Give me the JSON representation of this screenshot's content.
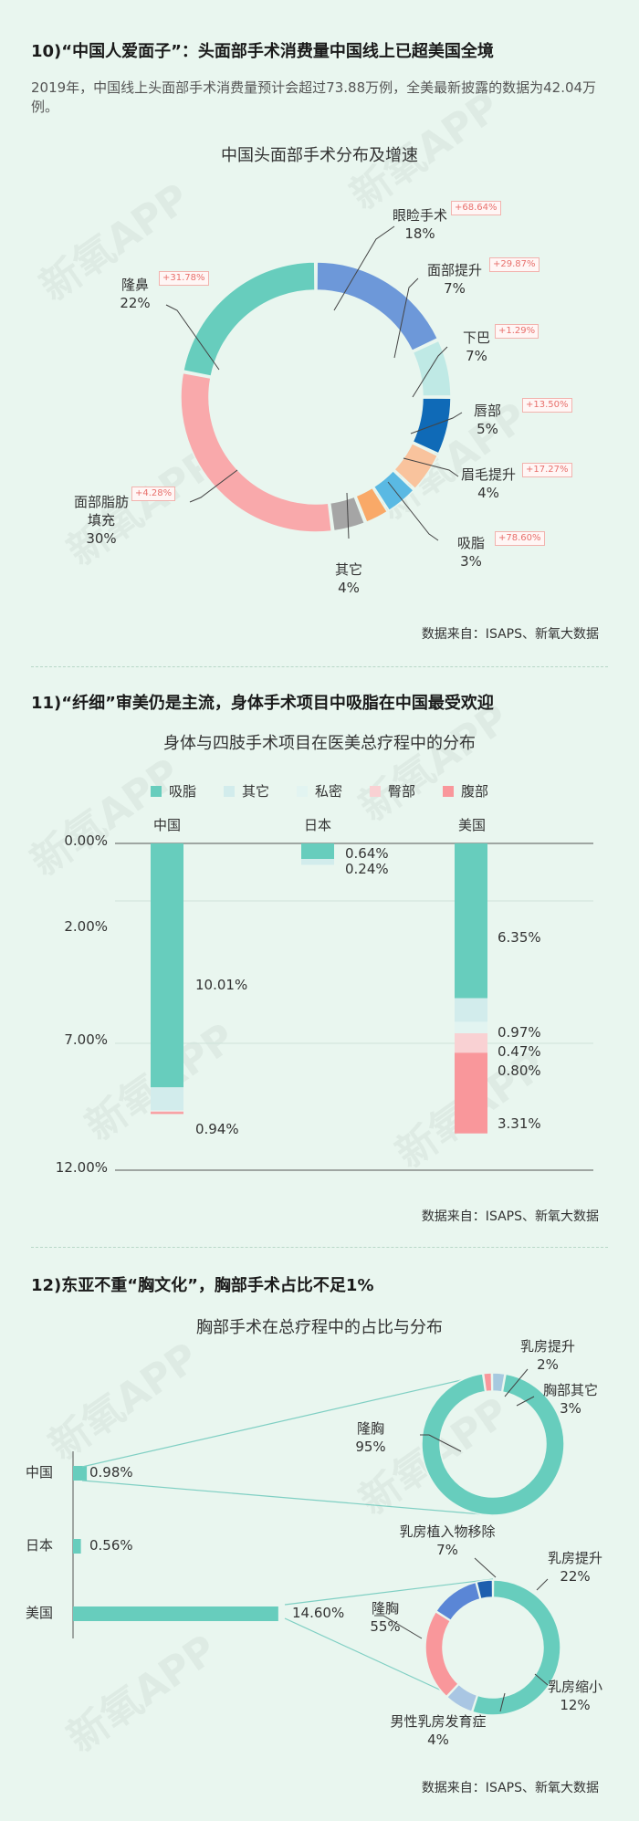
{
  "colors": {
    "teal": "#67cdbd",
    "lightteal": "#d2ecec",
    "palemint": "#e2f4f1",
    "pink": "#f9d1d3",
    "salmon": "#f9979b",
    "blue": "#6d98d9",
    "lightcyan": "#bfe9e5",
    "navy": "#0f6ab7",
    "peach": "#f9c39d",
    "sky": "#5ab9e3",
    "orange": "#f9a968",
    "gray": "#a5a5a5",
    "growth": "#e8706c"
  },
  "watermark": "新氧APP",
  "section10": {
    "heading": "10)“中国人爱面子”：头面部手术消费量中国线上已超美国全境",
    "intro": "2019年，中国线上头面部手术消费量预计会超过73.88万例，全美最新披露的数据为42.04万例。",
    "chart_title": "中国头面部手术分布及增速",
    "source": "数据来自：ISAPS、新氧大数据"
  },
  "section11": {
    "heading": "11)“纤细”审美仍是主流，身体手术项目中吸脂在中国最受欢迎",
    "chart_title": "身体与四肢手术项目在医美总疗程中的分布",
    "source": "数据来自：ISAPS、新氧大数据"
  },
  "section12": {
    "heading": "12)东亚不重“胸文化”，胸部手术占比不足1%",
    "chart_title": "胸部手术在总疗程中的占比与分布",
    "source": "数据来自：ISAPS、新氧大数据"
  },
  "chart_data": [
    {
      "type": "pie",
      "title": "中国头面部手术分布及增速",
      "slices": [
        {
          "label": "眼睑手术",
          "value": 18,
          "value_label": "18%",
          "growth": "+68.64%",
          "color": "#6d98d9"
        },
        {
          "label": "面部提升",
          "value": 7,
          "value_label": "7%",
          "growth": "+29.87%",
          "color": "#bfe9e5"
        },
        {
          "label": "下巴",
          "value": 7,
          "value_label": "7%",
          "growth": "+1.29%",
          "color": "#0f6ab7"
        },
        {
          "label": "唇部",
          "value": 5,
          "value_label": "5%",
          "growth": "+13.50%",
          "color": "#f9c39d"
        },
        {
          "label": "眉毛提升",
          "value": 4,
          "value_label": "4%",
          "growth": "+17.27%",
          "color": "#5ab9e3"
        },
        {
          "label": "吸脂",
          "value": 3,
          "value_label": "3%",
          "growth": "+78.60%",
          "color": "#f9a968"
        },
        {
          "label": "其它",
          "value": 4,
          "value_label": "4%",
          "growth": "",
          "color": "#a5a5a5"
        },
        {
          "label": "面部脂肪填充",
          "value": 30,
          "value_label": "30%",
          "growth": "+4.28%",
          "color": "#f9a9ab"
        },
        {
          "label": "隆鼻",
          "value": 22,
          "value_label": "22%",
          "growth": "+31.78%",
          "color": "#67cdbd"
        }
      ]
    },
    {
      "type": "bar",
      "stacked": true,
      "title": "身体与四肢手术项目在医美总疗程中的分布",
      "categories": [
        "中国",
        "日本",
        "美国"
      ],
      "legend": [
        "吸脂",
        "其它",
        "私密",
        "臀部",
        "腹部"
      ],
      "legend_placement": "top",
      "y_ticks": [
        "0.00%",
        "2.00%",
        "7.00%",
        "12.00%"
      ],
      "ylim": [
        0,
        12
      ],
      "series": [
        {
          "name": "吸脂",
          "values": [
            10.01,
            0.64,
            6.35
          ],
          "labels": [
            "10.01%",
            "0.64%",
            "6.35%"
          ],
          "color": "#67cdbd"
        },
        {
          "name": "其它",
          "values": [
            0.94,
            0.24,
            0.97
          ],
          "labels": [
            "0.94%",
            "0.24%",
            "0.97%"
          ],
          "color": "#d2ecec"
        },
        {
          "name": "私密",
          "values": [
            0.04,
            0,
            0.47
          ],
          "labels": [
            "",
            "",
            "0.47%"
          ],
          "color": "#e2f4f1"
        },
        {
          "name": "臀部",
          "values": [
            0.03,
            0,
            0.8
          ],
          "labels": [
            "",
            "",
            "0.80%"
          ],
          "color": "#f9d1d3"
        },
        {
          "name": "腹部",
          "values": [
            0.08,
            0,
            3.31
          ],
          "labels": [
            "",
            "",
            "3.31%"
          ],
          "color": "#f9979b"
        }
      ]
    },
    {
      "type": "bar",
      "orientation": "horizontal",
      "title": "胸部手术在总疗程中的占比与分布",
      "categories": [
        "中国",
        "日本",
        "美国"
      ],
      "values": [
        0.98,
        0.56,
        14.6
      ],
      "value_labels": [
        "0.98%",
        "0.56%",
        "14.60%"
      ]
    },
    {
      "type": "pie",
      "group": "中国",
      "slices": [
        {
          "label": "隆胸",
          "value": 95,
          "value_label": "95%",
          "color": "#67cdbd"
        },
        {
          "label": "乳房提升",
          "value": 2,
          "value_label": "2%",
          "color": "#f9979b"
        },
        {
          "label": "胸部其它",
          "value": 3,
          "value_label": "3%",
          "color": "#a7c9df"
        }
      ]
    },
    {
      "type": "pie",
      "group": "美国",
      "slices": [
        {
          "label": "隆胸",
          "value": 55,
          "value_label": "55%",
          "color": "#67cdbd"
        },
        {
          "label": "乳房植入物移除",
          "value": 7,
          "value_label": "7%",
          "color": "#a9c6e3"
        },
        {
          "label": "乳房提升",
          "value": 22,
          "value_label": "22%",
          "color": "#f9979b"
        },
        {
          "label": "乳房缩小",
          "value": 12,
          "value_label": "12%",
          "color": "#5a86d6"
        },
        {
          "label": "男性乳房发育症",
          "value": 4,
          "value_label": "4%",
          "color": "#1e5fae"
        }
      ]
    }
  ]
}
